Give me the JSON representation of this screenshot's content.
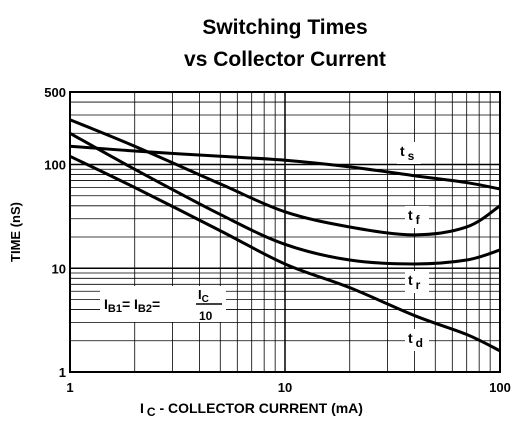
{
  "chart_data": {
    "type": "line",
    "title": [
      "Switching Times",
      "vs Collector Current"
    ],
    "y_label": "TIME  (nS)",
    "x_label": {
      "main": "I",
      "sub": "C",
      "rest": " - COLLECTOR CURRENT (mA)"
    },
    "annotation": {
      "i1": "I",
      "s1": "B1",
      "i2": "= I",
      "s2": "B2",
      "eq": "=",
      "num": "I",
      "numsub": "C",
      "den": "10"
    },
    "x": [
      1,
      2,
      5,
      10,
      20,
      40,
      70,
      100
    ],
    "series": [
      {
        "name": "t",
        "subscript": "s",
        "color": "#000000",
        "values": [
          150,
          135,
          120,
          110,
          95,
          78,
          67,
          58
        ]
      },
      {
        "name": "t",
        "subscript": "f",
        "color": "#000000",
        "values": [
          270,
          150,
          65,
          35,
          25,
          21,
          25,
          40
        ]
      },
      {
        "name": "t",
        "subscript": "r",
        "color": "#000000",
        "values": [
          200,
          90,
          33,
          17,
          12,
          11,
          12,
          15
        ]
      },
      {
        "name": "t",
        "subscript": "d",
        "color": "#000000",
        "values": [
          120,
          60,
          23,
          11,
          6.5,
          3.5,
          2.3,
          1.6
        ]
      }
    ],
    "xlim": [
      1,
      100
    ],
    "xticks": [
      1,
      10,
      100
    ],
    "ylim": [
      1,
      500
    ],
    "yticks": [
      1,
      10,
      100,
      500
    ],
    "xscale": "log",
    "yscale": "log",
    "grid": true
  }
}
